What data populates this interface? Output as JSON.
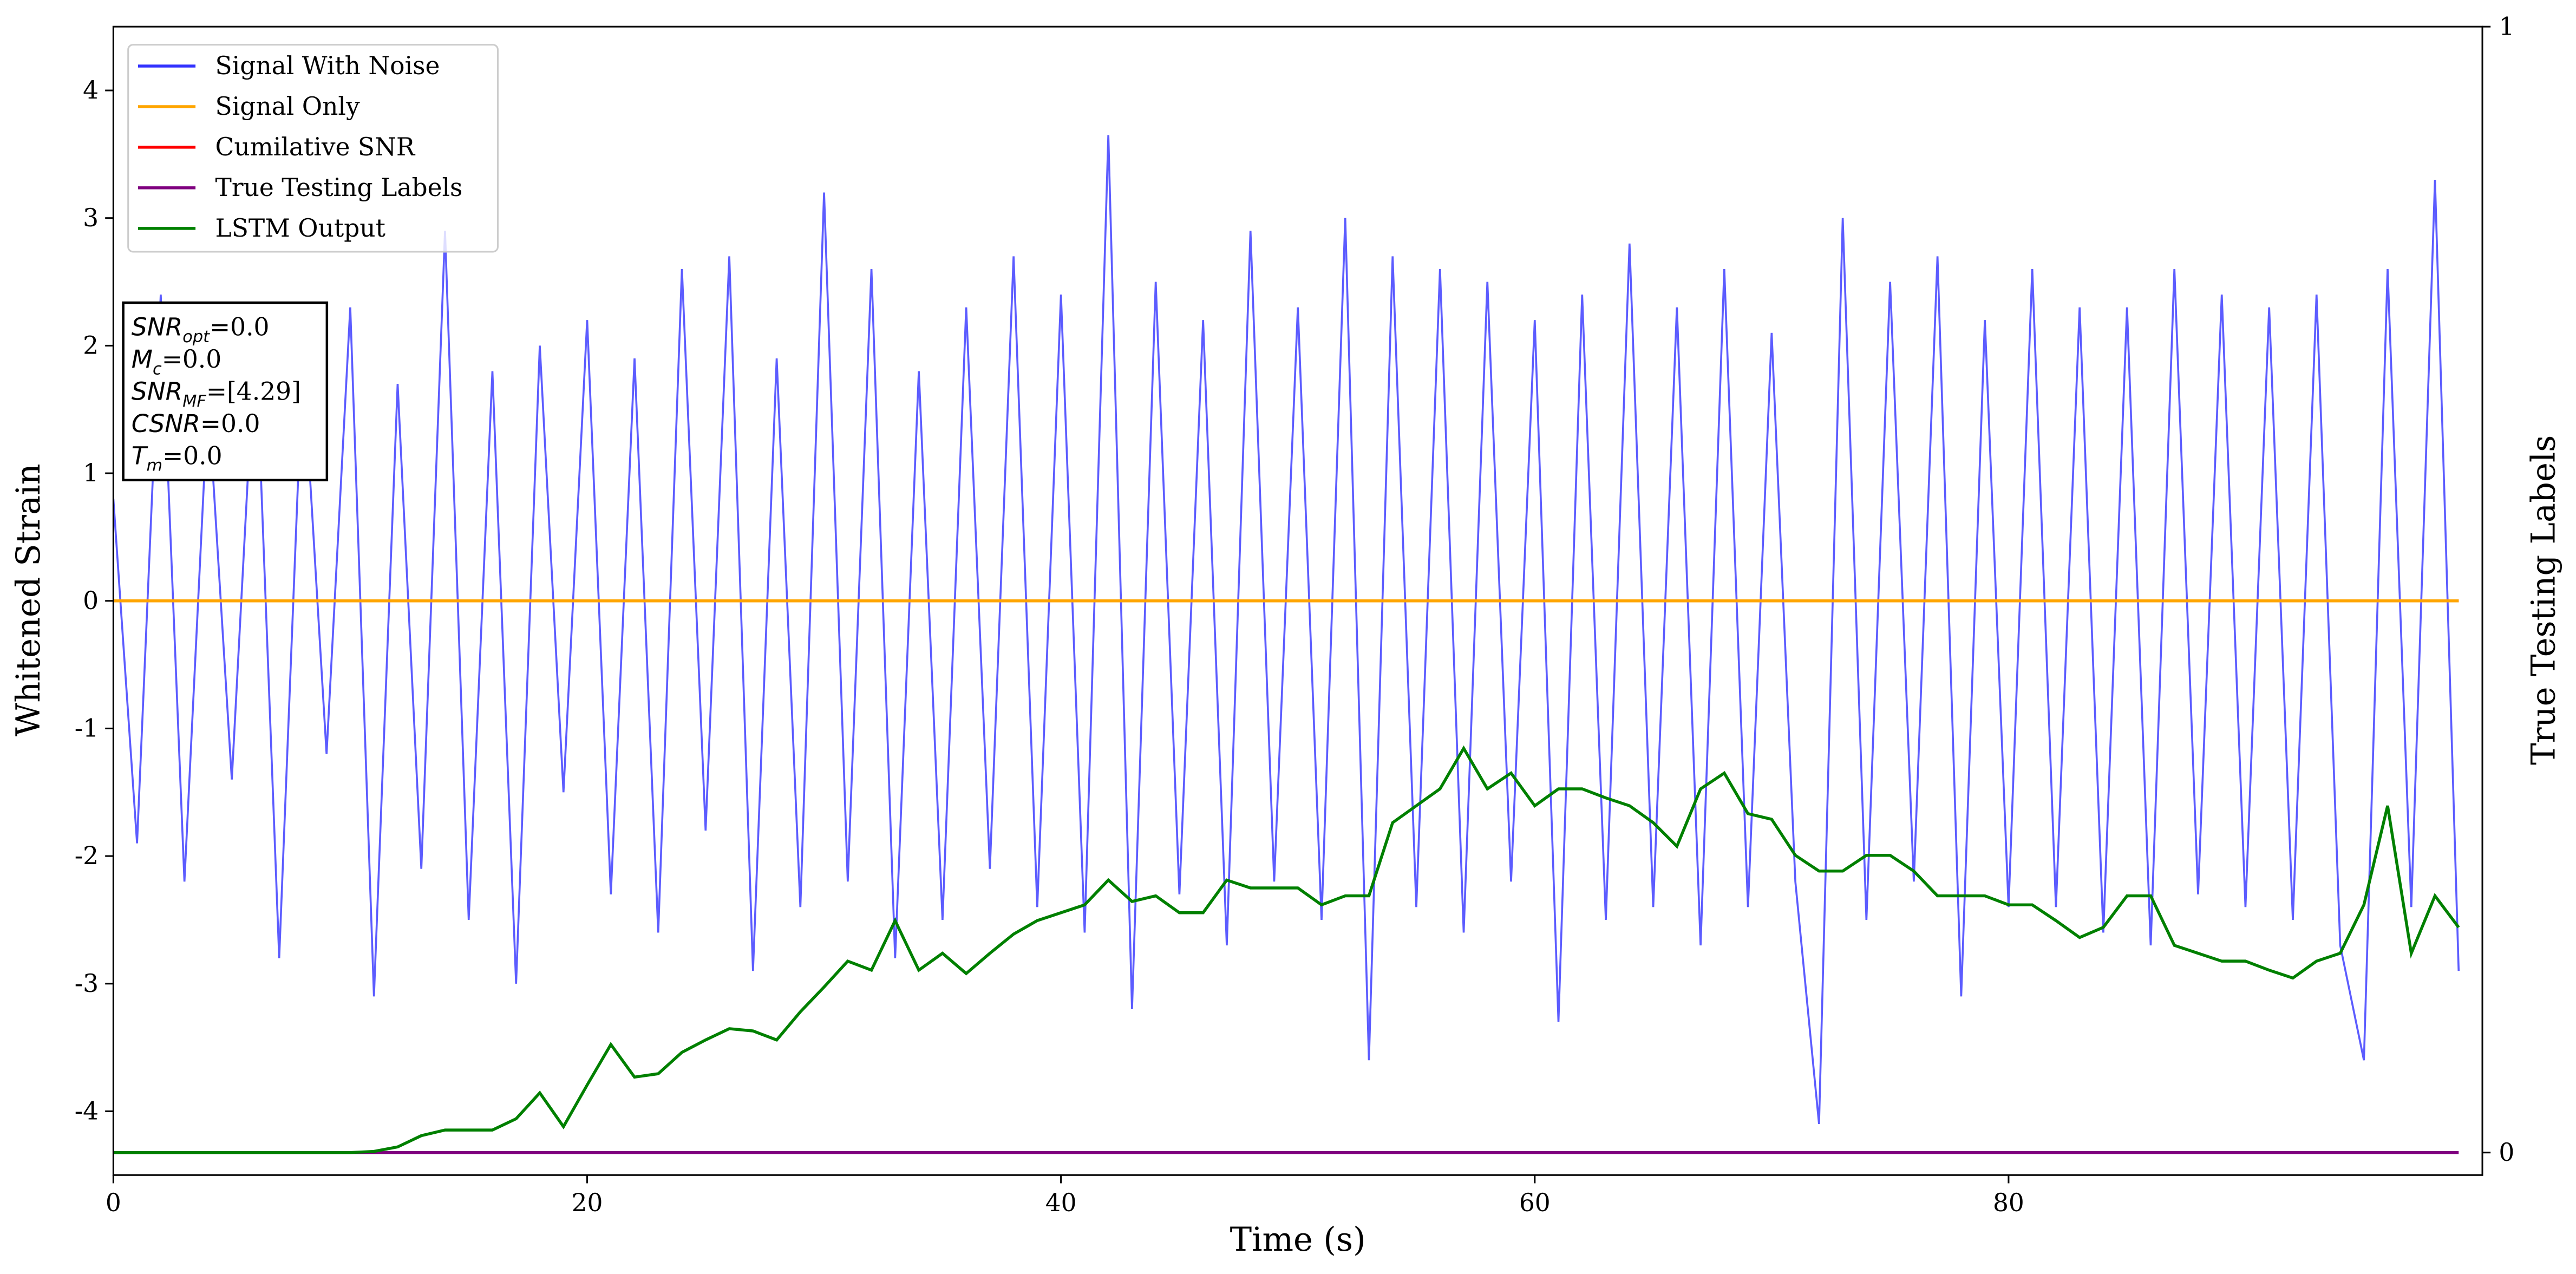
{
  "chart_data": {
    "type": "line",
    "xlabel": "Time (s)",
    "ylabel": "Whitened Strain",
    "y2label": "True Testing Labels",
    "x": [
      0,
      1,
      2,
      3,
      4,
      5,
      6,
      7,
      8,
      9,
      10,
      11,
      12,
      13,
      14,
      15,
      16,
      17,
      18,
      19,
      20,
      21,
      22,
      23,
      24,
      25,
      26,
      27,
      28,
      29,
      30,
      31,
      32,
      33,
      34,
      35,
      36,
      37,
      38,
      39,
      40,
      41,
      42,
      43,
      44,
      45,
      46,
      47,
      48,
      49,
      50,
      51,
      52,
      53,
      54,
      55,
      56,
      57,
      58,
      59,
      60,
      61,
      62,
      63,
      64,
      65,
      66,
      67,
      68,
      69,
      70,
      71,
      72,
      73,
      74,
      75,
      76,
      77,
      78,
      79,
      80,
      81,
      82,
      83,
      84,
      85,
      86,
      87,
      88,
      89,
      90,
      91,
      92,
      93,
      94,
      95,
      96,
      97,
      98,
      99
    ],
    "xlim": [
      0,
      100
    ],
    "xticks": [
      0,
      20,
      40,
      60,
      80
    ],
    "ylim": [
      -4.5,
      4.5
    ],
    "yticks": [
      -4,
      -3,
      -2,
      -1,
      0,
      1,
      2,
      3,
      4
    ],
    "y2lim": [
      -0.02,
      1
    ],
    "y2ticks": [
      0,
      1
    ],
    "legend": "upper left",
    "series": [
      {
        "name": "Signal With Noise",
        "color": "#3333ff",
        "values": [
          0.8,
          -1.9,
          2.4,
          -2.2,
          1.6,
          -1.4,
          2.1,
          -2.8,
          1.9,
          -1.2,
          2.3,
          -3.1,
          1.7,
          -2.1,
          2.9,
          -2.5,
          1.8,
          -3.0,
          2.0,
          -1.5,
          2.2,
          -2.3,
          1.9,
          -2.6,
          2.6,
          -1.8,
          2.7,
          -2.9,
          1.9,
          -2.4,
          3.2,
          -2.2,
          2.6,
          -2.8,
          1.8,
          -2.5,
          2.3,
          -2.1,
          2.7,
          -2.4,
          2.4,
          -2.6,
          3.65,
          -3.2,
          2.5,
          -2.3,
          2.2,
          -2.7,
          2.9,
          -2.2,
          2.3,
          -2.5,
          3.0,
          -3.6,
          2.7,
          -2.4,
          2.6,
          -2.6,
          2.5,
          -2.2,
          2.2,
          -3.3,
          2.4,
          -2.5,
          2.8,
          -2.4,
          2.3,
          -2.7,
          2.6,
          -2.4,
          2.1,
          -2.2,
          -4.1,
          3.0,
          -2.5,
          2.5,
          -2.2,
          2.7,
          -3.1,
          2.2,
          -2.4,
          2.6,
          -2.4,
          2.3,
          -2.6,
          2.3,
          -2.7,
          2.6,
          -2.3,
          2.4,
          -2.4,
          2.3,
          -2.5,
          2.4,
          -2.7,
          -3.6,
          2.6,
          -2.4,
          3.3,
          -2.9
        ]
      },
      {
        "name": "Signal Only",
        "color": "#ffa500",
        "values": [
          0,
          0,
          0,
          0,
          0,
          0,
          0,
          0,
          0,
          0,
          0,
          0,
          0,
          0,
          0,
          0,
          0,
          0,
          0,
          0,
          0,
          0,
          0,
          0,
          0,
          0,
          0,
          0,
          0,
          0,
          0,
          0,
          0,
          0,
          0,
          0,
          0,
          0,
          0,
          0,
          0,
          0,
          0,
          0,
          0,
          0,
          0,
          0,
          0,
          0,
          0,
          0,
          0,
          0,
          0,
          0,
          0,
          0,
          0,
          0,
          0,
          0,
          0,
          0,
          0,
          0,
          0,
          0,
          0,
          0,
          0,
          0,
          0,
          0,
          0,
          0,
          0,
          0,
          0,
          0,
          0,
          0,
          0,
          0,
          0,
          0,
          0,
          0,
          0,
          0,
          0,
          0,
          0,
          0,
          0,
          0,
          0,
          0,
          0,
          0
        ]
      },
      {
        "name": "Cumilative SNR",
        "color": "#ff0000",
        "values": [
          0,
          0,
          0,
          0,
          0,
          0,
          0,
          0,
          0,
          0,
          0,
          0,
          0,
          0,
          0,
          0,
          0,
          0,
          0,
          0,
          0,
          0,
          0,
          0,
          0,
          0,
          0,
          0,
          0,
          0,
          0,
          0,
          0,
          0,
          0,
          0,
          0,
          0,
          0,
          0,
          0,
          0,
          0,
          0,
          0,
          0,
          0,
          0,
          0,
          0,
          0,
          0,
          0,
          0,
          0,
          0,
          0,
          0,
          0,
          0,
          0,
          0,
          0,
          0,
          0,
          0,
          0,
          0,
          0,
          0,
          0,
          0,
          0,
          0,
          0,
          0,
          0,
          0,
          0,
          0,
          0,
          0,
          0,
          0,
          0,
          0,
          0,
          0,
          0,
          0,
          0,
          0,
          0,
          0,
          0,
          0,
          0,
          0,
          0,
          0
        ]
      },
      {
        "name": "True Testing Labels",
        "color": "#800080",
        "axis": "y2",
        "values": [
          0,
          0,
          0,
          0,
          0,
          0,
          0,
          0,
          0,
          0,
          0,
          0,
          0,
          0,
          0,
          0,
          0,
          0,
          0,
          0,
          0,
          0,
          0,
          0,
          0,
          0,
          0,
          0,
          0,
          0,
          0,
          0,
          0,
          0,
          0,
          0,
          0,
          0,
          0,
          0,
          0,
          0,
          0,
          0,
          0,
          0,
          0,
          0,
          0,
          0,
          0,
          0,
          0,
          0,
          0,
          0,
          0,
          0,
          0,
          0,
          0,
          0,
          0,
          0,
          0,
          0,
          0,
          0,
          0,
          0,
          0,
          0,
          0,
          0,
          0,
          0,
          0,
          0,
          0,
          0,
          0,
          0,
          0,
          0,
          0,
          0,
          0,
          0,
          0,
          0,
          0,
          0,
          0,
          0,
          0,
          0,
          0,
          0,
          0,
          0
        ]
      },
      {
        "name": "LSTM Output",
        "color": "#008000",
        "axis": "y2",
        "values": [
          0,
          0,
          0,
          0,
          0,
          0,
          0,
          0,
          0,
          0,
          0,
          0.001,
          0.005,
          0.015,
          0.02,
          0.02,
          0.02,
          0.03,
          0.053,
          0.023,
          0.06,
          0.096,
          0.067,
          0.07,
          0.089,
          0.1,
          0.11,
          0.108,
          0.1,
          0.125,
          0.147,
          0.17,
          0.162,
          0.206,
          0.162,
          0.177,
          0.159,
          0.177,
          0.194,
          0.206,
          0.213,
          0.22,
          0.242,
          0.223,
          0.228,
          0.213,
          0.213,
          0.242,
          0.235,
          0.235,
          0.235,
          0.22,
          0.228,
          0.228,
          0.293,
          0.308,
          0.323,
          0.359,
          0.323,
          0.337,
          0.308,
          0.323,
          0.323,
          0.315,
          0.308,
          0.293,
          0.272,
          0.323,
          0.337,
          0.301,
          0.296,
          0.264,
          0.25,
          0.25,
          0.264,
          0.264,
          0.25,
          0.228,
          0.228,
          0.228,
          0.22,
          0.22,
          0.206,
          0.191,
          0.2,
          0.228,
          0.228,
          0.184,
          0.177,
          0.17,
          0.17,
          0.162,
          0.155,
          0.17,
          0.177,
          0.22,
          0.308,
          0.177,
          0.228,
          0.2
        ]
      }
    ],
    "annotations": [
      {
        "symbol": "SNR",
        "subscript": "opt",
        "text": "=0.0"
      },
      {
        "symbol": "M",
        "subscript": "c",
        "text": "=0.0"
      },
      {
        "symbol": "SNR",
        "subscript": "MF",
        "text": "=[4.29]"
      },
      {
        "symbol": "CSNR",
        "text": "=0.0"
      },
      {
        "symbol": "T",
        "subscript": "m",
        "text": "=0.0"
      }
    ]
  }
}
